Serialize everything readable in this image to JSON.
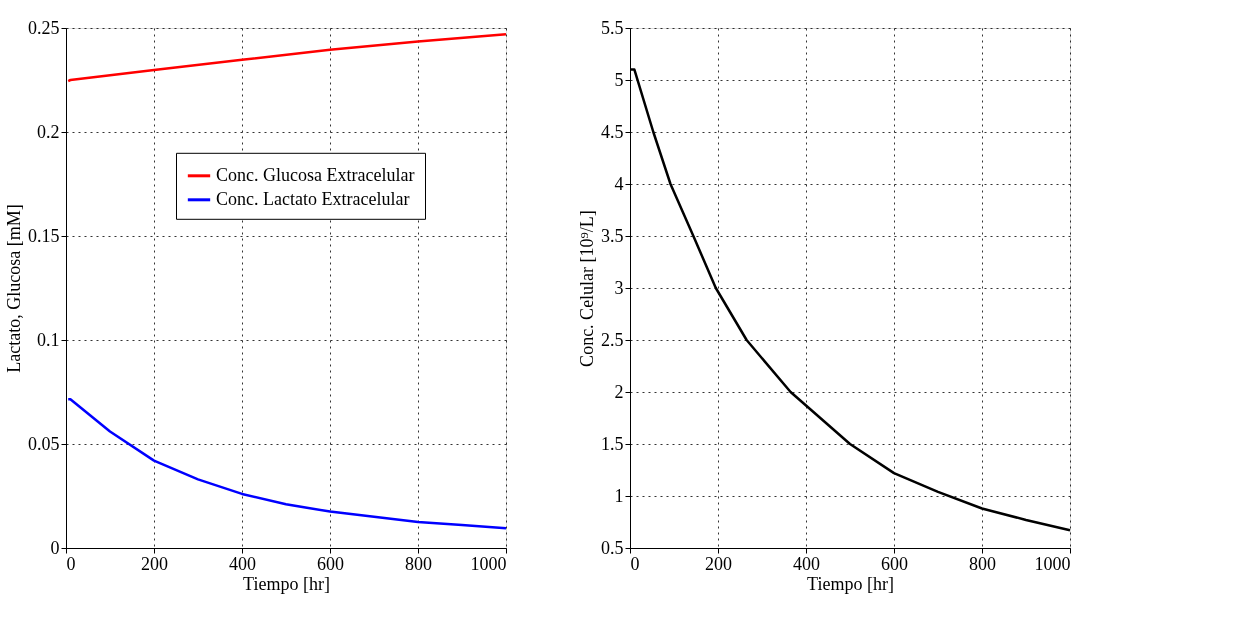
{
  "chart_data": [
    {
      "type": "line",
      "xlabel": "Tiempo [hr]",
      "ylabel": "Lactato, Glucosa [mM]",
      "xlim": [
        0,
        1000
      ],
      "ylim": [
        0,
        0.25
      ],
      "xticks": [
        0,
        200,
        400,
        600,
        800,
        1000
      ],
      "yticks": [
        0,
        0.05,
        0.1,
        0.15,
        0.2,
        0.25
      ],
      "grid": true,
      "legend": "top right",
      "line_style": "solid",
      "series": [
        {
          "name": "Conc. Glucosa Extracelular",
          "color": "#ff0000",
          "x": [
            5,
            10,
            200,
            400,
            600,
            800,
            1000
          ],
          "values": [
            0.2245,
            0.225,
            0.2298,
            0.2347,
            0.2395,
            0.2435,
            0.247
          ]
        },
        {
          "name": "Conc. Lactato Extracelular",
          "color": "#0000ff",
          "x": [
            5,
            10,
            100,
            200,
            300,
            400,
            500,
            600,
            700,
            800,
            900,
            1000
          ],
          "values": [
            0.0715,
            0.0715,
            0.056,
            0.042,
            0.033,
            0.026,
            0.021,
            0.0175,
            0.015,
            0.0125,
            0.011,
            0.0095
          ]
        }
      ]
    },
    {
      "type": "line",
      "xlabel": "Tiempo [hr]",
      "ylabel": "Conc. Celular [10⁹/L]",
      "xlim": [
        0,
        1000
      ],
      "ylim": [
        0.5,
        5.5
      ],
      "xticks": [
        0,
        200,
        400,
        600,
        800,
        1000
      ],
      "yticks": [
        0.5,
        1,
        1.5,
        2,
        2.5,
        3,
        3.5,
        4,
        4.5,
        5,
        5.5
      ],
      "grid": true,
      "line_style": "solid",
      "series": [
        {
          "color": "#000000",
          "x": [
            0,
            10,
            53,
            92,
            144,
            195,
            265,
            365,
            500,
            600,
            700,
            800,
            900,
            1000
          ],
          "values": [
            5.1,
            5.1,
            4.5,
            4.0,
            3.5,
            3.0,
            2.5,
            2.0,
            1.5,
            1.22,
            1.04,
            0.88,
            0.77,
            0.67
          ]
        }
      ]
    }
  ]
}
